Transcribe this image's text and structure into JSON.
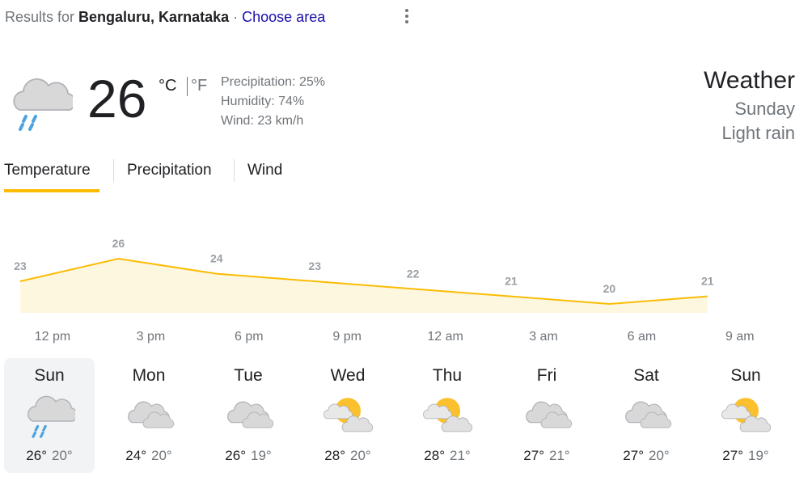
{
  "header": {
    "prefix": "Results for",
    "location": "Bengaluru, Karnataka",
    "separator": "·",
    "link": "Choose area"
  },
  "current": {
    "temperature": 26,
    "unit_c": "°C",
    "unit_f": "°F",
    "precipitation": "Precipitation: 25%",
    "humidity": "Humidity: 74%",
    "wind": "Wind: 23 km/h",
    "icon": "rain"
  },
  "summary": {
    "title": "Weather",
    "day": "Sunday",
    "condition": "Light rain"
  },
  "tabs": [
    "Temperature",
    "Precipitation",
    "Wind"
  ],
  "selected_tab": 0,
  "chart_data": {
    "type": "area",
    "categories": [
      "12 pm",
      "3 pm",
      "6 pm",
      "9 pm",
      "12 am",
      "3 am",
      "6 am",
      "9 am"
    ],
    "values": [
      23,
      26,
      24,
      23,
      22,
      21,
      20,
      21
    ],
    "color": "#fbbc04",
    "fill": "#fef7e0"
  },
  "forecast": [
    {
      "day": "Sun",
      "high": "26°",
      "low": "20°",
      "icon": "rain"
    },
    {
      "day": "Mon",
      "high": "24°",
      "low": "20°",
      "icon": "cloudy"
    },
    {
      "day": "Tue",
      "high": "26°",
      "low": "19°",
      "icon": "cloudy"
    },
    {
      "day": "Wed",
      "high": "28°",
      "low": "20°",
      "icon": "partly"
    },
    {
      "day": "Thu",
      "high": "28°",
      "low": "21°",
      "icon": "partly"
    },
    {
      "day": "Fri",
      "high": "27°",
      "low": "21°",
      "icon": "cloudy"
    },
    {
      "day": "Sat",
      "high": "27°",
      "low": "20°",
      "icon": "cloudy"
    },
    {
      "day": "Sun",
      "high": "27°",
      "low": "19°",
      "icon": "partly"
    }
  ],
  "selected_day": 0
}
